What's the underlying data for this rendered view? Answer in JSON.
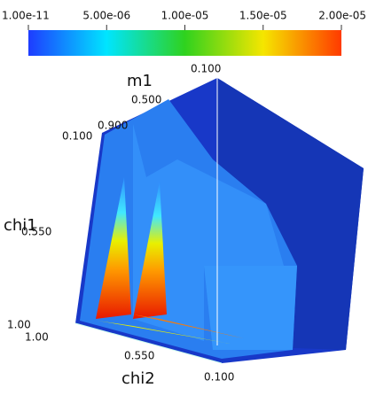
{
  "colorbar": {
    "range": [
      1e-11,
      2e-05
    ],
    "ticks": [
      {
        "value": 1e-11,
        "label": "1.00e-11"
      },
      {
        "value": 5e-06,
        "label": "5.00e-06"
      },
      {
        "value": 1e-05,
        "label": "1.00e-05"
      },
      {
        "value": 1.5e-05,
        "label": "1.50e-05"
      },
      {
        "value": 2e-05,
        "label": "2.00e-05"
      }
    ]
  },
  "axes": {
    "m1": {
      "title": "m1",
      "ticks": [
        "0.100",
        "0.500",
        "0.900"
      ]
    },
    "chi1": {
      "title": "chi1",
      "ticks": [
        "0.100",
        "0.550",
        "1.00"
      ]
    },
    "chi2": {
      "title": "chi2",
      "ticks": [
        "1.00",
        "0.550",
        "0.100"
      ]
    }
  }
}
